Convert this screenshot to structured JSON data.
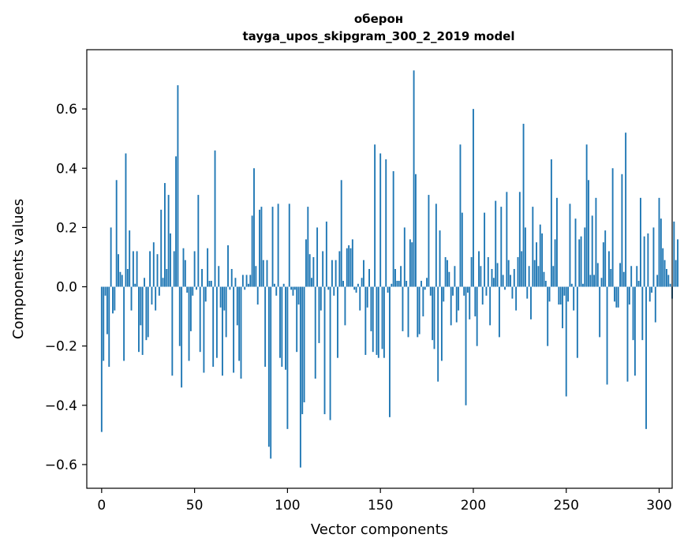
{
  "chart_data": {
    "type": "bar",
    "title_line1": "оберон",
    "title_line2": "tayga_upos_skipgram_300_2_2019 model",
    "xlabel": "Vector components",
    "ylabel": "Components values",
    "xlim": [
      -8,
      307
    ],
    "ylim": [
      -0.68,
      0.8
    ],
    "xticks": [
      0,
      50,
      100,
      150,
      200,
      250,
      300
    ],
    "xtick_labels": [
      "0",
      "50",
      "100",
      "150",
      "200",
      "250",
      "300"
    ],
    "yticks": [
      -0.6,
      -0.4,
      -0.2,
      0.0,
      0.2,
      0.4,
      0.6
    ],
    "ytick_labels": [
      "−0.6",
      "−0.4",
      "−0.2",
      "0.0",
      "0.2",
      "0.4",
      "0.6"
    ],
    "bar_color": "#1f77b4",
    "values": [
      -0.49,
      -0.25,
      -0.03,
      -0.16,
      -0.27,
      0.2,
      -0.09,
      -0.08,
      0.36,
      0.11,
      0.05,
      0.04,
      -0.25,
      0.45,
      0.06,
      0.19,
      -0.08,
      0.12,
      0.01,
      0.12,
      -0.22,
      -0.13,
      -0.23,
      0.03,
      -0.18,
      -0.17,
      0.12,
      -0.06,
      0.15,
      -0.08,
      0.11,
      -0.03,
      0.26,
      0.03,
      0.35,
      0.06,
      0.31,
      0.18,
      -0.3,
      0.12,
      0.44,
      0.68,
      -0.2,
      -0.34,
      0.13,
      0.09,
      -0.02,
      -0.25,
      -0.15,
      -0.03,
      0.12,
      -0.01,
      0.31,
      -0.22,
      0.06,
      -0.29,
      -0.05,
      0.13,
      0.02,
      0.02,
      -0.27,
      0.46,
      -0.24,
      0.07,
      -0.07,
      -0.3,
      -0.08,
      -0.17,
      0.14,
      -0.01,
      0.06,
      -0.29,
      0.03,
      -0.13,
      -0.25,
      -0.31,
      0.04,
      -0.01,
      0.04,
      0.01,
      0.04,
      0.24,
      0.4,
      0.07,
      -0.06,
      0.26,
      0.27,
      0.09,
      -0.27,
      0.09,
      -0.54,
      -0.58,
      0.27,
      0.01,
      -0.03,
      0.28,
      -0.24,
      -0.27,
      0.01,
      -0.28,
      -0.48,
      0.28,
      -0.01,
      -0.03,
      -0.01,
      -0.22,
      -0.06,
      -0.61,
      -0.43,
      -0.39,
      0.16,
      0.27,
      0.11,
      0.03,
      0.1,
      -0.31,
      0.2,
      -0.19,
      -0.08,
      0.12,
      -0.43,
      0.22,
      -0.01,
      -0.45,
      0.09,
      -0.03,
      0.09,
      -0.24,
      0.12,
      0.36,
      0.02,
      -0.13,
      0.13,
      0.14,
      0.13,
      0.16,
      -0.01,
      -0.02,
      0.01,
      -0.08,
      0.03,
      0.09,
      -0.23,
      -0.07,
      0.06,
      -0.15,
      -0.22,
      0.48,
      -0.23,
      -0.24,
      0.45,
      -0.21,
      -0.24,
      0.43,
      -0.02,
      -0.44,
      0.01,
      0.39,
      0.06,
      0.02,
      0.02,
      0.07,
      -0.15,
      0.2,
      0.02,
      -0.17,
      0.16,
      0.15,
      0.73,
      0.38,
      -0.17,
      -0.16,
      0.02,
      -0.1,
      -0.01,
      0.03,
      0.31,
      -0.03,
      -0.18,
      -0.21,
      0.28,
      -0.32,
      0.19,
      -0.25,
      -0.05,
      0.1,
      0.09,
      0.05,
      -0.13,
      -0.03,
      0.07,
      -0.12,
      -0.08,
      0.48,
      0.25,
      -0.03,
      -0.4,
      -0.02,
      -0.11,
      0.1,
      0.6,
      -0.1,
      -0.2,
      0.12,
      0.07,
      -0.06,
      0.25,
      -0.03,
      0.1,
      -0.13,
      0.06,
      0.03,
      0.29,
      0.08,
      -0.17,
      0.27,
      0.04,
      -0.01,
      0.32,
      0.09,
      0.04,
      -0.04,
      0.06,
      -0.08,
      0.1,
      0.32,
      0.12,
      0.55,
      0.2,
      -0.04,
      0.07,
      -0.11,
      0.27,
      0.09,
      0.15,
      0.07,
      0.21,
      0.18,
      0.05,
      0.02,
      -0.2,
      -0.05,
      0.43,
      0.07,
      0.16,
      0.3,
      -0.06,
      -0.06,
      -0.14,
      -0.03,
      -0.37,
      -0.05,
      0.28,
      0.01,
      -0.08,
      0.23,
      -0.24,
      0.16,
      0.17,
      0.01,
      0.2,
      0.48,
      0.36,
      0.04,
      0.24,
      0.04,
      0.3,
      0.08,
      -0.17,
      0.03,
      0.15,
      0.19,
      -0.33,
      0.12,
      0.06,
      0.4,
      -0.05,
      -0.07,
      -0.07,
      0.08,
      0.38,
      0.05,
      0.52,
      -0.32,
      -0.06,
      0.07,
      -0.18,
      -0.3,
      0.07,
      0.02,
      0.3,
      -0.18,
      0.17,
      -0.48,
      0.18,
      -0.05,
      -0.02,
      0.2,
      -0.12,
      0.04,
      0.3,
      0.23,
      0.13,
      0.09,
      0.06,
      0.04,
      0.01,
      -0.04,
      0.22,
      0.09,
      0.16
    ]
  }
}
